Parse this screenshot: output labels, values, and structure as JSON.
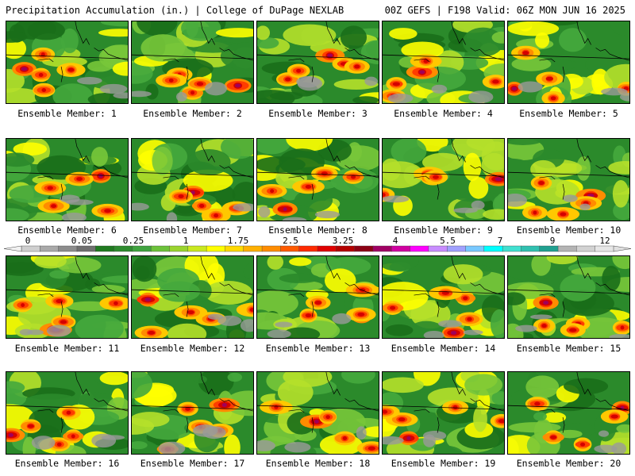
{
  "header": {
    "title": "Precipitation Accumulation (in.) | College of DuPage NEXLAB",
    "run_info": "00Z GEFS | F198 Valid: 06Z MON JUN 16 2025"
  },
  "colorbar": {
    "tick_labels": [
      "0",
      "0.05",
      "0.25",
      "1",
      "1.75",
      "2.5",
      "3.25",
      "4",
      "5.5",
      "7",
      "9",
      "12"
    ],
    "colors": [
      "#cfcfcf",
      "#a9a9a9",
      "#8c8c8c",
      "#6f6f6f",
      "#1f7a1f",
      "#2e8b2e",
      "#3fa33f",
      "#6cc23a",
      "#9ad42e",
      "#c9e81f",
      "#ffff00",
      "#ffd900",
      "#ffb000",
      "#ff8c00",
      "#ff5a00",
      "#ff2a00",
      "#e00000",
      "#b40000",
      "#8c0014",
      "#a00064",
      "#d000a0",
      "#ff00ff",
      "#c88cff",
      "#a0a0ff",
      "#78c8ff",
      "#00ffff",
      "#40e0d0",
      "#30c0b0",
      "#20a090",
      "#b4b4b4",
      "#d2d2d2",
      "#e6e6e6"
    ]
  },
  "members": [
    {
      "label": "Ensemble Member: 1"
    },
    {
      "label": "Ensemble Member: 2"
    },
    {
      "label": "Ensemble Member: 3"
    },
    {
      "label": "Ensemble Member: 4"
    },
    {
      "label": "Ensemble Member: 5"
    },
    {
      "label": "Ensemble Member: 6"
    },
    {
      "label": "Ensemble Member: 7"
    },
    {
      "label": "Ensemble Member: 8"
    },
    {
      "label": "Ensemble Member: 9"
    },
    {
      "label": "Ensemble Member: 10"
    },
    {
      "label": "Ensemble Member: 11"
    },
    {
      "label": "Ensemble Member: 12"
    },
    {
      "label": "Ensemble Member: 13"
    },
    {
      "label": "Ensemble Member: 14"
    },
    {
      "label": "Ensemble Member: 15"
    },
    {
      "label": "Ensemble Member: 16"
    },
    {
      "label": "Ensemble Member: 17"
    },
    {
      "label": "Ensemble Member: 18"
    },
    {
      "label": "Ensemble Member: 19"
    },
    {
      "label": "Ensemble Member: 20"
    }
  ]
}
